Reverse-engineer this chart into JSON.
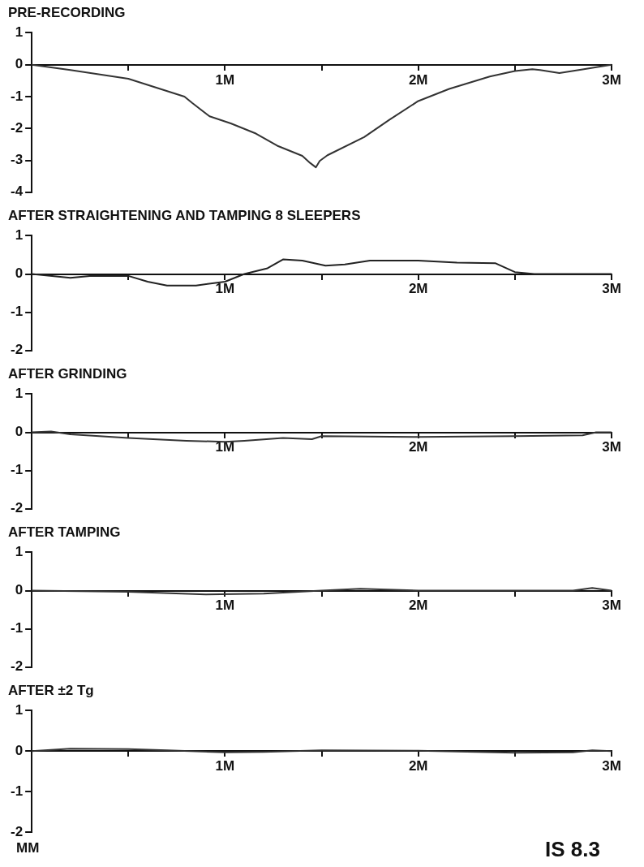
{
  "chart_data": [
    {
      "type": "line",
      "title": "PRE-RECORDING",
      "x": [
        0,
        0.2,
        0.5,
        0.79,
        0.83,
        0.92,
        1.03,
        1.16,
        1.27,
        1.4,
        1.44,
        1.47,
        1.49,
        1.53,
        1.72,
        1.85,
        2.0,
        2.16,
        2.37,
        2.5,
        2.59,
        2.63,
        2.73,
        2.85,
        3.0
      ],
      "values": [
        0,
        -0.17,
        -0.44,
        -1.0,
        -1.2,
        -1.62,
        -1.84,
        -2.16,
        -2.54,
        -2.86,
        -3.08,
        -3.22,
        -3.02,
        -2.84,
        -2.27,
        -1.73,
        -1.14,
        -0.76,
        -0.37,
        -0.2,
        -0.14,
        -0.17,
        -0.26,
        -0.15,
        0
      ],
      "color": "#333333",
      "xlim": [
        0,
        3
      ],
      "ylim": [
        -4,
        1
      ],
      "yticks": [
        -4,
        -3,
        -2,
        -1,
        0,
        1
      ],
      "xticks": [
        {
          "value": 0,
          "label": null
        },
        {
          "value": 0.5,
          "label": null
        },
        {
          "value": 1,
          "label": "1M"
        },
        {
          "value": 1.5,
          "label": null
        },
        {
          "value": 2,
          "label": "2M"
        },
        {
          "value": 2.5,
          "label": null
        },
        {
          "value": 3,
          "label": "3M"
        }
      ],
      "grid": false,
      "legend": false,
      "marker": "none",
      "line_style": "solid"
    },
    {
      "type": "line",
      "title": "AFTER STRAIGHTENING AND TAMPING 8 SLEEPERS",
      "x": [
        0,
        0.2,
        0.3,
        0.5,
        0.6,
        0.7,
        0.85,
        1.0,
        1.1,
        1.22,
        1.3,
        1.4,
        1.52,
        1.62,
        1.75,
        2.0,
        2.2,
        2.4,
        2.5,
        2.6,
        2.9,
        3.0
      ],
      "values": [
        0,
        -0.1,
        -0.05,
        -0.05,
        -0.2,
        -0.3,
        -0.3,
        -0.2,
        0,
        0.15,
        0.38,
        0.35,
        0.22,
        0.25,
        0.35,
        0.35,
        0.3,
        0.28,
        0.05,
        0,
        0,
        0
      ],
      "color": "#222222",
      "xlim": [
        0,
        3
      ],
      "ylim": [
        -2,
        1
      ],
      "yticks": [
        -2,
        -1,
        0,
        1
      ],
      "xticks": [
        {
          "value": 0,
          "label": null
        },
        {
          "value": 0.5,
          "label": null
        },
        {
          "value": 1,
          "label": "1M"
        },
        {
          "value": 1.5,
          "label": null
        },
        {
          "value": 2,
          "label": "2M"
        },
        {
          "value": 2.5,
          "label": null
        },
        {
          "value": 3,
          "label": "3M"
        }
      ],
      "grid": false,
      "legend": false,
      "marker": "none",
      "line_style": "solid"
    },
    {
      "type": "line",
      "title": "AFTER GRINDING",
      "x": [
        0,
        0.1,
        0.2,
        0.5,
        0.8,
        1.0,
        1.1,
        1.3,
        1.45,
        1.5,
        2.0,
        2.5,
        2.85,
        2.92,
        3.0
      ],
      "values": [
        0,
        0.02,
        -0.05,
        -0.15,
        -0.22,
        -0.25,
        -0.22,
        -0.15,
        -0.18,
        -0.1,
        -0.12,
        -0.1,
        -0.08,
        0,
        0
      ],
      "color": "#333333",
      "xlim": [
        0,
        3
      ],
      "ylim": [
        -2,
        1
      ],
      "yticks": [
        -2,
        -1,
        0,
        1
      ],
      "xticks": [
        {
          "value": 0,
          "label": null
        },
        {
          "value": 0.5,
          "label": null
        },
        {
          "value": 1,
          "label": "1M"
        },
        {
          "value": 1.5,
          "label": null
        },
        {
          "value": 2,
          "label": "2M"
        },
        {
          "value": 2.5,
          "label": null
        },
        {
          "value": 3,
          "label": "3M"
        }
      ],
      "grid": false,
      "legend": false,
      "marker": "none",
      "line_style": "solid"
    },
    {
      "type": "line",
      "title": "AFTER TAMPING",
      "x": [
        0,
        0.5,
        0.9,
        1.2,
        1.5,
        1.7,
        2.0,
        2.5,
        2.8,
        2.9,
        3.0
      ],
      "values": [
        0,
        -0.03,
        -0.1,
        -0.08,
        0,
        0.05,
        0,
        0,
        0,
        0.07,
        0
      ],
      "color": "#333333",
      "xlim": [
        0,
        3
      ],
      "ylim": [
        -2,
        1
      ],
      "yticks": [
        -2,
        -1,
        0,
        1
      ],
      "xticks": [
        {
          "value": 0,
          "label": null
        },
        {
          "value": 0.5,
          "label": null
        },
        {
          "value": 1,
          "label": "1M"
        },
        {
          "value": 1.5,
          "label": null
        },
        {
          "value": 2,
          "label": "2M"
        },
        {
          "value": 2.5,
          "label": null
        },
        {
          "value": 3,
          "label": "3M"
        }
      ],
      "grid": false,
      "legend": false,
      "marker": "none",
      "line_style": "solid"
    },
    {
      "type": "line",
      "title": "AFTER ±2 Tg",
      "ylabel": "MM",
      "annotations": [
        "IS 8.3"
      ],
      "x": [
        0,
        0.2,
        0.5,
        0.7,
        1.0,
        1.2,
        1.5,
        2.0,
        2.5,
        2.8,
        2.9,
        3.0
      ],
      "values": [
        0,
        0.06,
        0.05,
        0.02,
        -0.03,
        -0.02,
        0.02,
        0.01,
        -0.04,
        -0.03,
        0.02,
        0
      ],
      "color": "#333333",
      "xlim": [
        0,
        3
      ],
      "ylim": [
        -2,
        1
      ],
      "yticks": [
        -2,
        -1,
        0,
        1
      ],
      "xticks": [
        {
          "value": 0,
          "label": null
        },
        {
          "value": 0.5,
          "label": null
        },
        {
          "value": 1,
          "label": "1M"
        },
        {
          "value": 1.5,
          "label": null
        },
        {
          "value": 2,
          "label": "2M"
        },
        {
          "value": 2.5,
          "label": null
        },
        {
          "value": 3,
          "label": "3M"
        }
      ],
      "grid": false,
      "legend": false,
      "marker": "none",
      "line_style": "solid"
    }
  ]
}
